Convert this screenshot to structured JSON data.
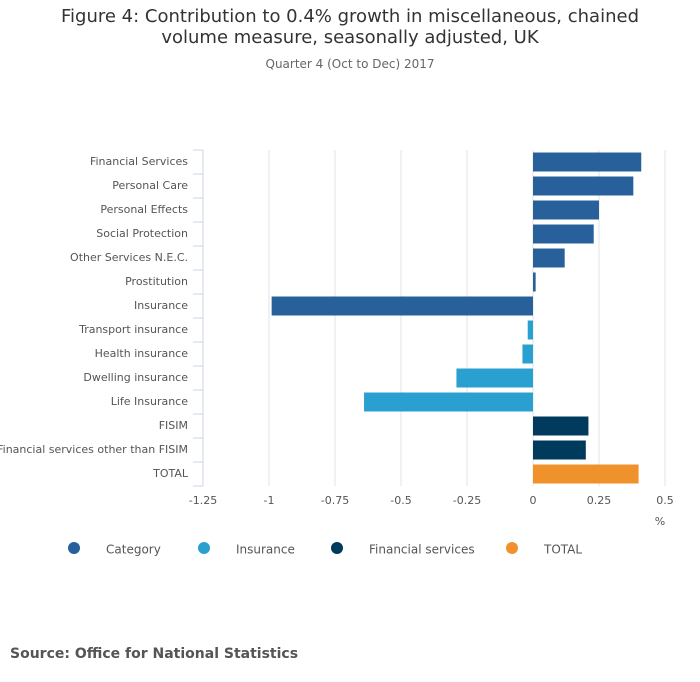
{
  "chart_data": {
    "type": "bar",
    "orientation": "horizontal",
    "title": "Figure 4: Contribution to 0.4% growth in miscellaneous, chained volume measure, seasonally adjusted, UK",
    "subtitle": "Quarter 4 (Oct to Dec) 2017",
    "x_label": "%",
    "categories": [
      "Financial Services",
      "Personal Care",
      "Personal Effects",
      "Social Protection",
      "Other Services N.E.C.",
      "Prostitution",
      "Insurance",
      "Transport insurance",
      "Health insurance",
      "Dwelling insurance",
      "Life Insurance",
      "FISIM",
      "Financial services other than FISIM",
      "TOTAL"
    ],
    "series": [
      {
        "name": "Category",
        "color": "#27609a",
        "values": [
          0.41,
          0.38,
          0.25,
          0.23,
          0.12,
          0.01,
          -0.99,
          null,
          null,
          null,
          null,
          null,
          null,
          null
        ]
      },
      {
        "name": "Insurance",
        "color": "#2aa0d0",
        "values": [
          null,
          null,
          null,
          null,
          null,
          null,
          null,
          -0.02,
          -0.04,
          -0.29,
          -0.64,
          null,
          null,
          null
        ]
      },
      {
        "name": "Financial services",
        "color": "#003a5c",
        "values": [
          null,
          null,
          null,
          null,
          null,
          null,
          null,
          null,
          null,
          null,
          null,
          0.21,
          0.2,
          null
        ]
      },
      {
        "name": "TOTAL",
        "color": "#f0922b",
        "values": [
          null,
          null,
          null,
          null,
          null,
          null,
          null,
          null,
          null,
          null,
          null,
          null,
          null,
          0.4
        ]
      }
    ],
    "xlim": [
      -1.25,
      0.5
    ],
    "xticks": [
      -1.25,
      -1,
      -0.75,
      -0.5,
      -0.25,
      0,
      0.25,
      0.5
    ],
    "grid": true,
    "source": "Source: Office for National Statistics"
  }
}
